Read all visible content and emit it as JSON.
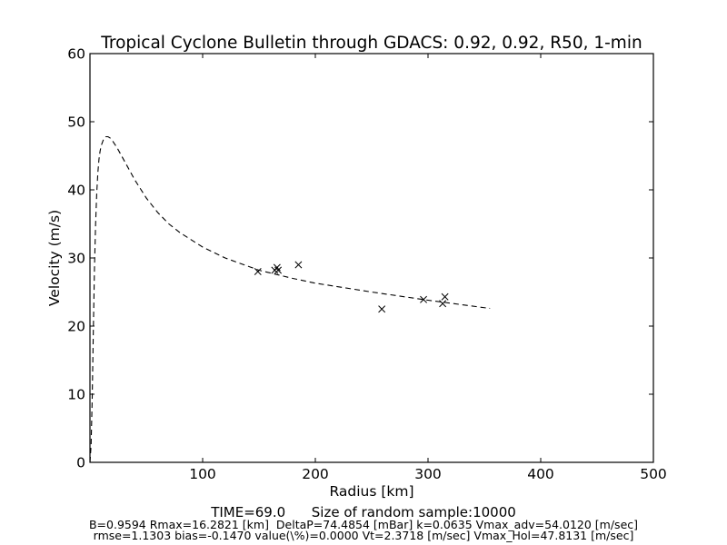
{
  "chart_data": {
    "type": "scatter",
    "title": "Tropical Cyclone Bulletin through GDACS: 0.92, 0.92, R50, 1-min",
    "xlabel": "Radius [km]",
    "ylabel": "Velocity (m/s)",
    "xlim": [
      0,
      500
    ],
    "ylim": [
      0,
      60
    ],
    "xticks": [
      100,
      200,
      300,
      400,
      500
    ],
    "yticks": [
      0,
      10,
      20,
      30,
      40,
      50,
      60
    ],
    "grid": false,
    "series": [
      {
        "style": "dashed-line",
        "x": [
          0,
          1,
          2,
          3,
          4,
          5,
          6,
          7,
          8,
          9,
          10,
          12,
          14,
          16,
          18,
          20,
          24,
          28,
          32,
          36,
          40,
          50,
          60,
          70,
          80,
          100,
          120,
          150,
          180,
          200,
          250,
          300,
          350,
          355
        ],
        "y": [
          0,
          2.5,
          9.5,
          19.5,
          28.5,
          35.0,
          39.5,
          42.5,
          44.5,
          45.7,
          46.5,
          47.4,
          47.8,
          47.8,
          47.6,
          47.2,
          46.2,
          45.0,
          43.8,
          42.6,
          41.4,
          38.8,
          36.7,
          35.0,
          33.7,
          31.6,
          30.0,
          28.2,
          27.0,
          26.3,
          25.0,
          23.8,
          22.7,
          22.6
        ]
      },
      {
        "style": "x-marker",
        "x": [
          149,
          164,
          166,
          167,
          185,
          259,
          296,
          313,
          315
        ],
        "y": [
          28.0,
          28.2,
          28.6,
          28.2,
          29.0,
          22.5,
          23.9,
          23.3,
          24.3
        ]
      }
    ]
  },
  "footer": {
    "time_line": "TIME=69.0      Size of random sample:10000",
    "params_line": "B=0.9594 Rmax=16.2821 [km]  DeltaP=74.4854 [mBar] k=0.0635 Vmax_adv=54.0120 [m/sec]",
    "stats_line": "rmse=1.1303 bias=-0.1470 value(\\%)=0.0000 Vt=2.3718 [m/sec] Vmax_Hol=47.8131 [m/sec]"
  }
}
